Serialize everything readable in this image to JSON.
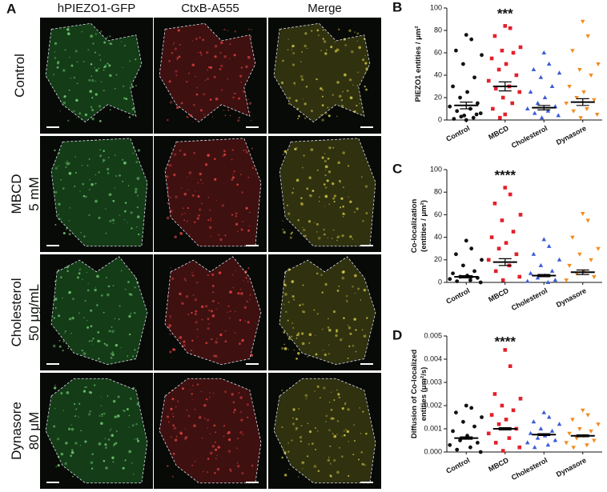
{
  "panels": {
    "A": {
      "letter": "A",
      "column_headers": [
        "hPIEZO1-GFP",
        "CtxB-A555",
        "Merge"
      ],
      "row_labels": [
        [
          "Control"
        ],
        [
          "MBCD",
          "5 mM"
        ],
        [
          "Cholesterol",
          "50 μg/mL"
        ],
        [
          "Dynasore",
          "80 μM"
        ]
      ]
    }
  },
  "chart_data": [
    {
      "type": "strip",
      "letter": "B",
      "ylabel": [
        "PIEZO1 entities / μm²"
      ],
      "ylim": [
        0,
        100
      ],
      "yticks": [
        0,
        20,
        40,
        60,
        80,
        100
      ],
      "annotation": {
        "text": "***",
        "category": "MBCD"
      },
      "series": [
        {
          "name": "Control",
          "color": "#111111",
          "marker": "circle",
          "mean": 13,
          "sem": 3,
          "values": [
            76,
            72,
            62,
            58,
            50,
            38,
            30,
            25,
            20,
            15,
            12,
            10,
            8,
            6,
            4,
            2,
            1,
            0,
            3,
            5
          ]
        },
        {
          "name": "MBCD",
          "color": "#e3202b",
          "marker": "square",
          "mean": 30,
          "sem": 4,
          "values": [
            84,
            82,
            75,
            65,
            62,
            60,
            55,
            50,
            45,
            40,
            35,
            30,
            28,
            25,
            20,
            15,
            10,
            5,
            2
          ]
        },
        {
          "name": "Cholesterol",
          "color": "#3a5bd9",
          "marker": "triangle-up",
          "mean": 11,
          "sem": 2,
          "values": [
            60,
            50,
            45,
            42,
            38,
            30,
            25,
            20,
            15,
            12,
            10,
            8,
            6,
            4,
            2
          ]
        },
        {
          "name": "Dynasore",
          "color": "#f28c1e",
          "marker": "triangle-down",
          "mean": 16,
          "sem": 3,
          "values": [
            88,
            75,
            62,
            50,
            45,
            40,
            30,
            25,
            20,
            18,
            15,
            10,
            8,
            5,
            2
          ]
        }
      ]
    },
    {
      "type": "strip",
      "letter": "C",
      "ylabel": [
        "Co-localization",
        "(entities / μm²)"
      ],
      "ylim": [
        0,
        100
      ],
      "yticks": [
        0,
        20,
        40,
        60,
        80,
        100
      ],
      "annotation": {
        "text": "****",
        "category": "MBCD"
      },
      "series": [
        {
          "name": "Control",
          "color": "#111111",
          "marker": "circle",
          "mean": 5,
          "sem": 1,
          "values": [
            37,
            30,
            25,
            20,
            15,
            10,
            8,
            6,
            5,
            4,
            3,
            2,
            1,
            0
          ]
        },
        {
          "name": "MBCD",
          "color": "#e3202b",
          "marker": "square",
          "mean": 18,
          "sem": 3,
          "values": [
            84,
            78,
            70,
            60,
            55,
            45,
            40,
            35,
            30,
            25,
            20,
            15,
            10,
            5,
            2
          ]
        },
        {
          "name": "Cholesterol",
          "color": "#3a5bd9",
          "marker": "triangle-up",
          "mean": 6,
          "sem": 1,
          "values": [
            38,
            32,
            25,
            20,
            15,
            10,
            8,
            6,
            4,
            2,
            1,
            0
          ]
        },
        {
          "name": "Dynasore",
          "color": "#f28c1e",
          "marker": "triangle-down",
          "mean": 9,
          "sem": 2,
          "values": [
            61,
            55,
            40,
            30,
            25,
            20,
            15,
            10,
            8,
            5,
            2
          ]
        }
      ]
    },
    {
      "type": "strip",
      "letter": "D",
      "ylabel": [
        "Diffusion of Co-localized",
        "entities (μm²/s)"
      ],
      "ylim": [
        0,
        0.005
      ],
      "yticks": [
        {
          "value": 0,
          "label": "0.000"
        },
        0.001,
        0.002,
        0.003,
        0.004,
        0.005
      ],
      "annotation": {
        "text": "****",
        "category": "MBCD"
      },
      "series": [
        {
          "name": "Control",
          "color": "#111111",
          "marker": "circle",
          "mean": 0.0006,
          "sem": 5e-05,
          "values": [
            0.002,
            0.0019,
            0.0017,
            0.0015,
            0.0013,
            0.0011,
            0.0009,
            0.0007,
            0.0005,
            0.0004,
            0.0003,
            0.0002,
            0.0001,
            0
          ]
        },
        {
          "name": "MBCD",
          "color": "#e3202b",
          "marker": "square",
          "mean": 0.001,
          "sem": 5e-05,
          "values": [
            0.0044,
            0.0037,
            0.0025,
            0.0023,
            0.002,
            0.0018,
            0.0016,
            0.0014,
            0.0012,
            0.001,
            0.0008,
            0.0006,
            0.0004,
            0.0002,
            5e-05
          ]
        },
        {
          "name": "Cholesterol",
          "color": "#3a5bd9",
          "marker": "triangle-up",
          "mean": 0.00075,
          "sem": 4e-05,
          "values": [
            0.0017,
            0.0015,
            0.0013,
            0.0012,
            0.001,
            0.0009,
            0.0008,
            0.0007,
            0.0006,
            0.0005,
            0.0004,
            0.0003,
            0.0002
          ]
        },
        {
          "name": "Dynasore",
          "color": "#f28c1e",
          "marker": "triangle-down",
          "mean": 0.0007,
          "sem": 4e-05,
          "values": [
            0.0018,
            0.0016,
            0.0014,
            0.0012,
            0.001,
            0.0009,
            0.0008,
            0.0007,
            0.0006,
            0.0005,
            0.0004,
            0.0003,
            0.0002
          ]
        }
      ]
    }
  ]
}
